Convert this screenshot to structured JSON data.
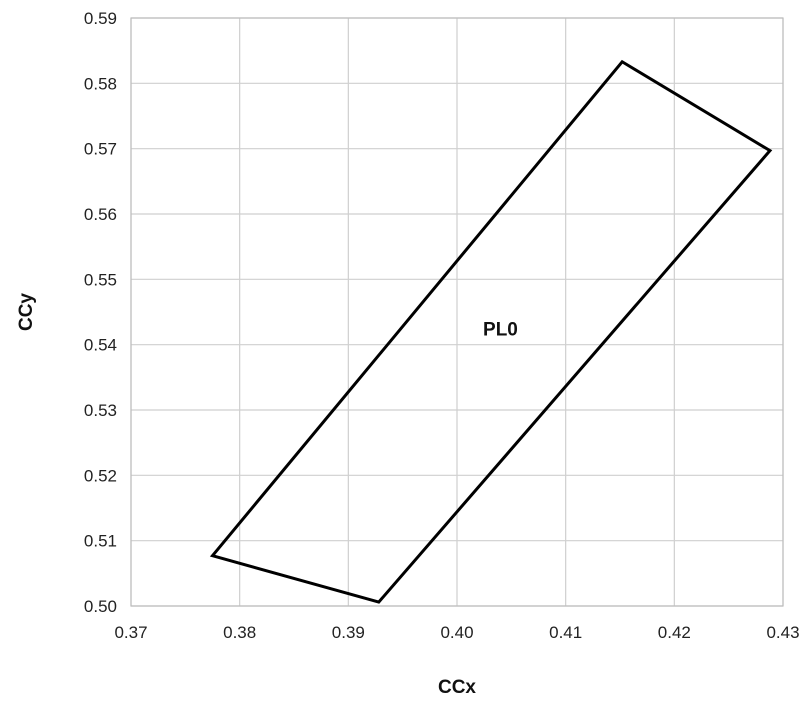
{
  "chart_data": {
    "type": "line",
    "title": "",
    "xlabel": "CCx",
    "ylabel": "CCy",
    "xlim": [
      0.37,
      0.43
    ],
    "ylim": [
      0.5,
      0.59
    ],
    "x_ticks": [
      "0.37",
      "0.38",
      "0.39",
      "0.40",
      "0.41",
      "0.42",
      "0.43"
    ],
    "y_ticks": [
      "0.50",
      "0.51",
      "0.52",
      "0.53",
      "0.54",
      "0.55",
      "0.56",
      "0.57",
      "0.58",
      "0.59"
    ],
    "grid": true,
    "series": [
      {
        "closed": true,
        "points": [
          {
            "x": 0.3775,
            "y": 0.5077
          },
          {
            "x": 0.4152,
            "y": 0.5833
          },
          {
            "x": 0.4288,
            "y": 0.5697
          },
          {
            "x": 0.3928,
            "y": 0.5006
          }
        ]
      }
    ],
    "annotations": [
      {
        "text": "PL0",
        "x": 0.404,
        "y": 0.5425
      }
    ],
    "colors": {
      "polygon": "#000000",
      "grid": "#cfcfcf",
      "text": "#222222"
    }
  }
}
